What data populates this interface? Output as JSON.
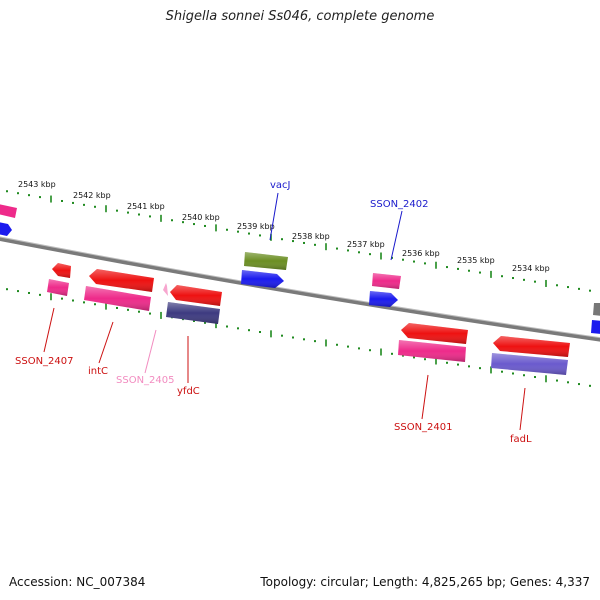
{
  "header": {
    "title": "Shigella sonnei Ss046, complete genome"
  },
  "footer": {
    "accession": "Accession: NC_007384",
    "topology": "Topology: circular; Length: 4,825,265 bp; Genes: 4,337"
  },
  "colors": {
    "backbone": "#7a7a7a",
    "ticks": "#1f8a1f",
    "red_gene": "#ee1111",
    "pink_gene": "#ee2a8a",
    "blue_gene": "#1a1aee",
    "navy_gene": "#3d3a80",
    "purple_gene": "#6a5acd",
    "olive_gene": "#6b8e23",
    "light_pink_gene": "#f7a6cf",
    "gray_gene": "#777777"
  },
  "scale_labels": [
    "2543 kbp",
    "2542 kbp",
    "2541 kbp",
    "2540 kbp",
    "2539 kbp",
    "2538 kbp",
    "2537 kbp",
    "2536 kbp",
    "2535 kbp",
    "2534 kbp"
  ],
  "gene_labels": [
    {
      "name": "vacJ",
      "color": "#1a1acc"
    },
    {
      "name": "SSON_2402",
      "color": "#1a1acc"
    },
    {
      "name": "SSON_2407",
      "color": "#cc1111"
    },
    {
      "name": "intC",
      "color": "#cc1111"
    },
    {
      "name": "SSON_2405",
      "color": "#f28cc0"
    },
    {
      "name": "yfdC",
      "color": "#cc1111"
    },
    {
      "name": "SSON_2401",
      "color": "#cc1111"
    },
    {
      "name": "fadL",
      "color": "#cc1111"
    }
  ]
}
